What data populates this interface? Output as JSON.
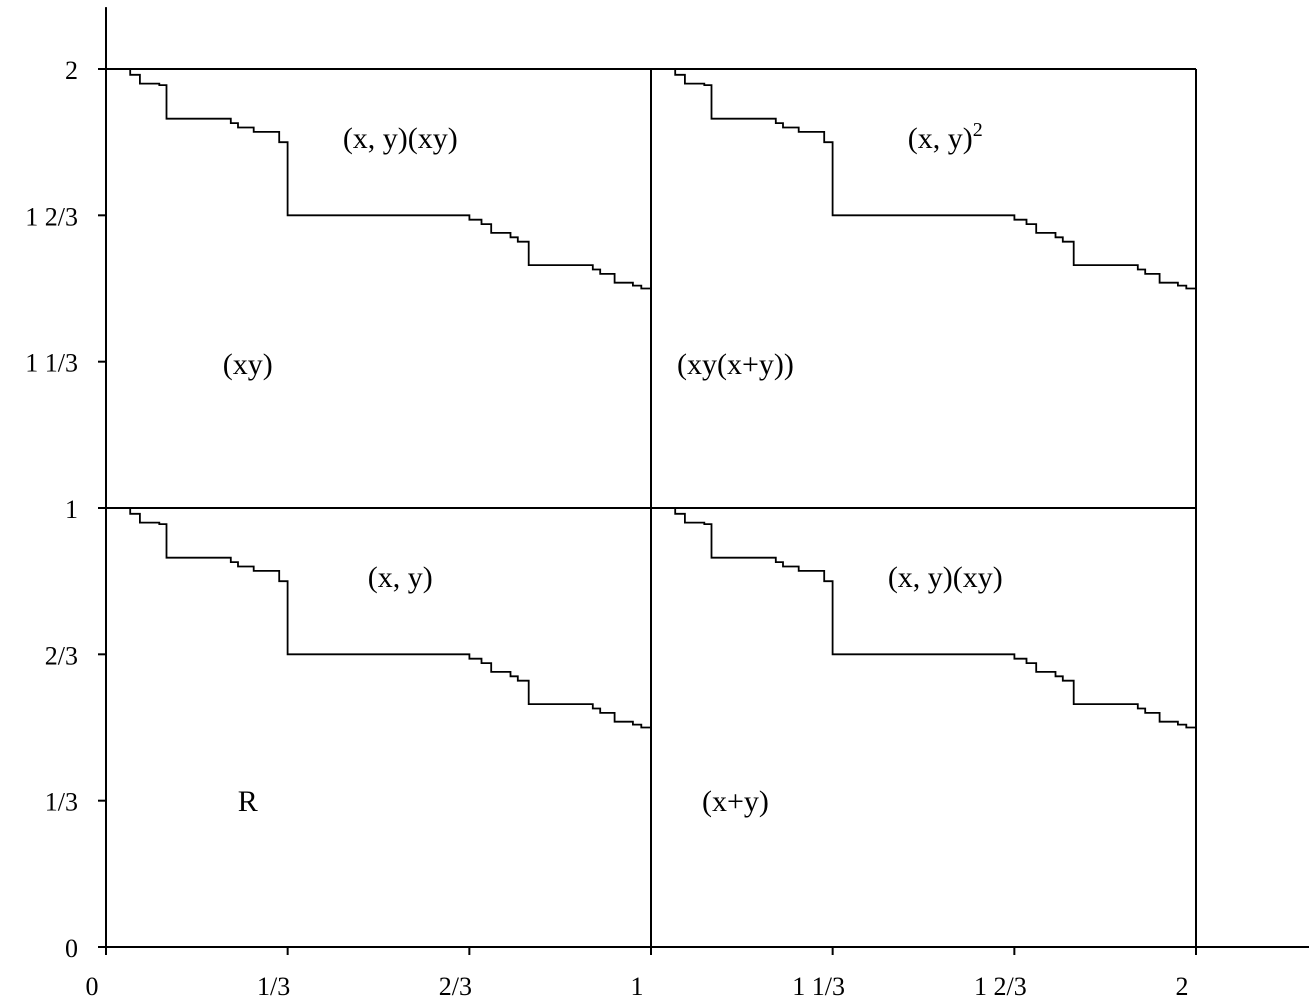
{
  "colors": {
    "line": "#000000",
    "background": "#ffffff"
  },
  "chart_data": {
    "type": "line",
    "title": "",
    "xlabel": "",
    "ylabel": "",
    "xlim": [
      0,
      2.3
    ],
    "ylim": [
      0,
      2.1
    ],
    "grid": false,
    "x_ticks": [
      {
        "value": 0,
        "label": "0"
      },
      {
        "value": 0.3333,
        "label": "1/3"
      },
      {
        "value": 0.6667,
        "label": "2/3"
      },
      {
        "value": 1,
        "label": "1"
      },
      {
        "value": 1.3333,
        "label": "1 1/3"
      },
      {
        "value": 1.6667,
        "label": "1 2/3"
      },
      {
        "value": 2,
        "label": "2"
      }
    ],
    "y_ticks": [
      {
        "value": 0,
        "label": "0"
      },
      {
        "value": 0.3333,
        "label": "1/3"
      },
      {
        "value": 0.6667,
        "label": "2/3"
      },
      {
        "value": 1,
        "label": "1"
      },
      {
        "value": 1.3333,
        "label": "1 1/3"
      },
      {
        "value": 1.6667,
        "label": "1 2/3"
      },
      {
        "value": 2,
        "label": "2"
      }
    ],
    "reference_lines": [
      {
        "orientation": "vertical",
        "value": 1,
        "from": 0,
        "to": 2
      },
      {
        "orientation": "vertical",
        "value": 2,
        "from": 0,
        "to": 2
      },
      {
        "orientation": "horizontal",
        "value": 1,
        "from": 0,
        "to": 2
      },
      {
        "orientation": "horizontal",
        "value": 2,
        "from": 0,
        "to": 2
      }
    ],
    "staircase_offsets": [
      {
        "x": 0,
        "y": 1
      },
      {
        "x": 1,
        "y": 1
      },
      {
        "x": 0,
        "y": 0
      },
      {
        "x": 1,
        "y": 0
      }
    ],
    "staircase_shape": [
      [
        0,
        1
      ],
      [
        0.0444,
        1
      ],
      [
        0.0444,
        0.9867
      ],
      [
        0.0622,
        0.9867
      ],
      [
        0.0622,
        0.9667
      ],
      [
        0.0978,
        0.9667
      ],
      [
        0.0978,
        0.9633
      ],
      [
        0.1111,
        0.9633
      ],
      [
        0.1111,
        0.9533
      ],
      [
        0.1111,
        0.8867
      ],
      [
        0.2289,
        0.8867
      ],
      [
        0.2289,
        0.8767
      ],
      [
        0.2422,
        0.8767
      ],
      [
        0.2422,
        0.8667
      ],
      [
        0.2711,
        0.8667
      ],
      [
        0.2711,
        0.8567
      ],
      [
        0.3178,
        0.8567
      ],
      [
        0.3178,
        0.8333
      ],
      [
        0.3333,
        0.8333
      ],
      [
        0.3333,
        0.6667
      ],
      [
        0.6667,
        0.6667
      ],
      [
        0.6667,
        0.6567
      ],
      [
        0.6889,
        0.6567
      ],
      [
        0.6889,
        0.6467
      ],
      [
        0.7067,
        0.6467
      ],
      [
        0.7067,
        0.6267
      ],
      [
        0.7422,
        0.6267
      ],
      [
        0.7422,
        0.6167
      ],
      [
        0.7556,
        0.6167
      ],
      [
        0.7556,
        0.6067
      ],
      [
        0.7756,
        0.6067
      ],
      [
        0.7756,
        0.5533
      ],
      [
        0.8933,
        0.5533
      ],
      [
        0.8933,
        0.5433
      ],
      [
        0.9067,
        0.5433
      ],
      [
        0.9067,
        0.5333
      ],
      [
        0.9333,
        0.5333
      ],
      [
        0.9333,
        0.5133
      ],
      [
        0.9667,
        0.5133
      ],
      [
        0.9667,
        0.5067
      ],
      [
        0.9822,
        0.5067
      ],
      [
        0.9822,
        0.5
      ],
      [
        1,
        0.5
      ]
    ],
    "annotations": [
      {
        "text": "(x, y)(xy)",
        "sup": "",
        "x": 0.54,
        "y": 1.845
      },
      {
        "text": "(x, y)",
        "sup": "2",
        "x": 1.54,
        "y": 1.845
      },
      {
        "text": "(xy)",
        "sup": "",
        "x": 0.26,
        "y": 1.33
      },
      {
        "text": "(xy(x+y))",
        "sup": "",
        "x": 1.155,
        "y": 1.33
      },
      {
        "text": "(x, y)",
        "sup": "",
        "x": 0.54,
        "y": 0.845
      },
      {
        "text": "(x, y)(xy)",
        "sup": "",
        "x": 1.54,
        "y": 0.845
      },
      {
        "text": "R",
        "sup": "",
        "x": 0.26,
        "y": 0.335
      },
      {
        "text": "(x+y)",
        "sup": "",
        "x": 1.155,
        "y": 0.335
      }
    ]
  }
}
